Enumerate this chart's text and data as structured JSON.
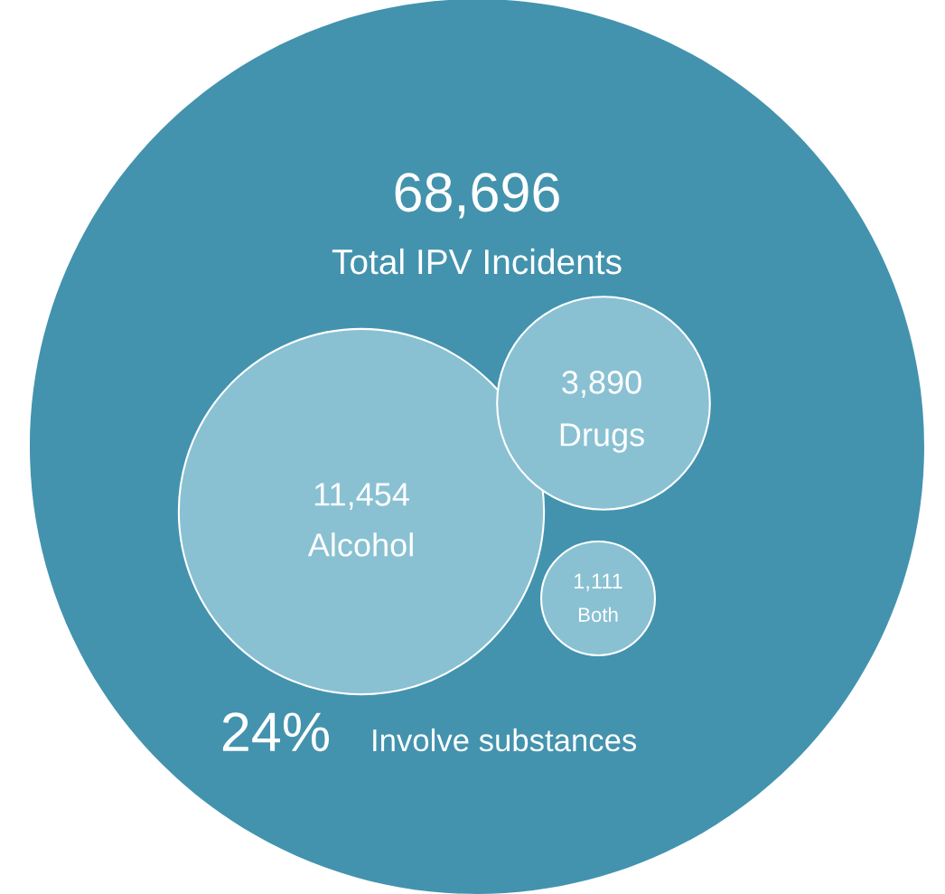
{
  "chart_data": {
    "type": "other",
    "categories": [
      "Total IPV Incidents",
      "Alcohol",
      "Drugs",
      "Both"
    ],
    "values": [
      68696,
      11454,
      3890,
      1111
    ],
    "value_labels": [
      "68,696",
      "11,454",
      "3,890",
      "1,111"
    ],
    "colors": [
      "#4393ae",
      "#89c1d3",
      "#89c1d3",
      "#89c1d3"
    ],
    "annotations": [
      "24%",
      "Involve substances"
    ]
  }
}
